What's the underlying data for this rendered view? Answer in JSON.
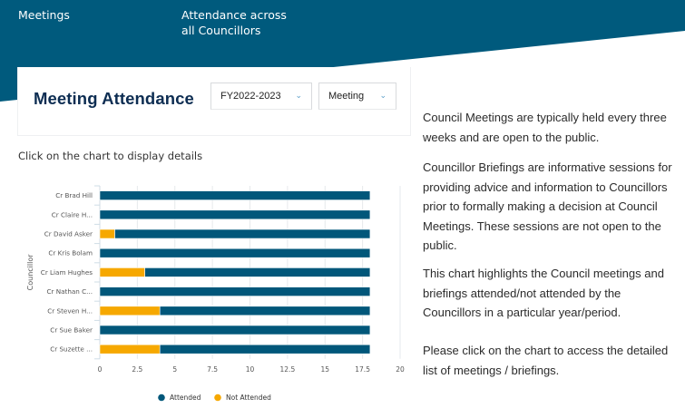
{
  "nav": {
    "meetings": "Meetings",
    "attendance": "Attendance across all Councillors"
  },
  "card": {
    "title": "Meeting Attendance",
    "period_select": {
      "value": "FY2022-2023",
      "icon": "chevron-down-icon"
    },
    "type_select": {
      "value": "Meeting",
      "icon": "chevron-down-icon"
    }
  },
  "hint": "Click on the chart to display details",
  "info": {
    "p1": "Council Meetings are typically held every three weeks and are open to the public.",
    "p2": "Councillor Briefings are informative sessions for providing advice and information to Councillors prior to formally making a decision at Council Meetings. These sessions are not open to the public.",
    "p3": "This chart highlights the Council meetings and briefings attended/not attended by the Councillors in a particular year/period.",
    "p4": "Please click on the chart to access the detailed list of meetings / briefings."
  },
  "colors": {
    "brand": "#005a7d",
    "attended": "#01577a",
    "not_attended": "#f6a800",
    "title": "#0d2d52"
  },
  "chart_data": {
    "type": "bar",
    "orientation": "horizontal",
    "stacked": true,
    "title": "",
    "xlabel": "",
    "ylabel": "Councillor",
    "categories": [
      "Cr Brad Hill",
      "Cr Claire H...",
      "Cr David Asker",
      "Cr Kris Bolam",
      "Cr Liam Hughes",
      "Cr Nathan C...",
      "Cr Steven H...",
      "Cr Sue Baker",
      "Cr Suzette ..."
    ],
    "series": [
      {
        "name": "Not Attended",
        "color": "#f6a800",
        "values": [
          0,
          0,
          1,
          0,
          3,
          0,
          4,
          0,
          4
        ]
      },
      {
        "name": "Attended",
        "color": "#01577a",
        "values": [
          18,
          18,
          17,
          18,
          15,
          18,
          14,
          18,
          14
        ]
      }
    ],
    "xlim": [
      0,
      20
    ],
    "xticks": [
      "0",
      "2.5",
      "5",
      "7.5",
      "10",
      "12.5",
      "15",
      "17.5",
      "20"
    ],
    "xtick_values": [
      0,
      2.5,
      5,
      7.5,
      10,
      12.5,
      15,
      17.5,
      20
    ],
    "grid": true,
    "legend": {
      "position": "bottom-center",
      "entries": [
        "Attended",
        "Not Attended"
      ]
    }
  }
}
